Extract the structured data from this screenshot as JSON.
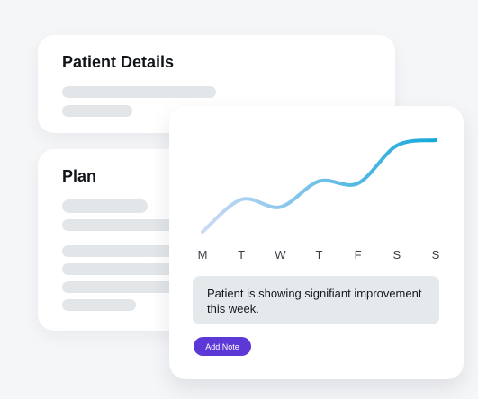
{
  "details_card": {
    "title": "Patient Details"
  },
  "plan_card": {
    "title": "Plan"
  },
  "chart_card": {
    "note": {
      "text": "Patient is showing signifiant improvement this week."
    },
    "add_note_label": "Add Note"
  },
  "chart_data": {
    "type": "line",
    "categories": [
      "M",
      "T",
      "W",
      "T",
      "F",
      "S",
      "S"
    ],
    "series": [
      {
        "values": [
          0.05,
          0.35,
          0.28,
          0.52,
          0.5,
          0.85,
          0.9
        ]
      }
    ],
    "title": "",
    "xlabel": "",
    "ylabel": "",
    "ylim": [
      0,
      1
    ],
    "grid": false,
    "gradient": [
      "#ccd9f5",
      "#16a8da"
    ]
  }
}
